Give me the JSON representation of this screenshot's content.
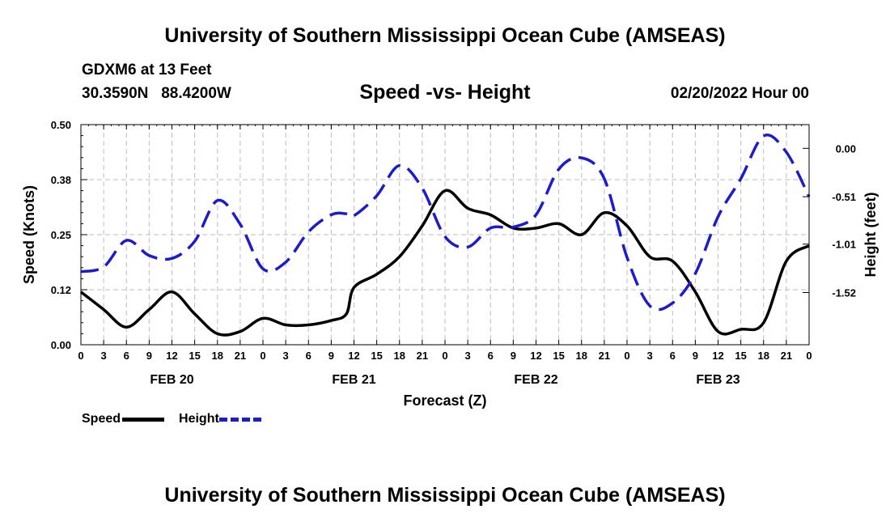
{
  "header": {
    "title": "University of Southern Mississippi Ocean Cube (AMSEAS)",
    "station": "GDXM6 at 13 Feet",
    "coords": "30.3590N   88.4200W",
    "subtitle": "Speed -vs- Height",
    "date": "02/20/2022 Hour 00"
  },
  "footer": {
    "title": "University of Southern Mississippi Ocean Cube (AMSEAS)"
  },
  "legend": {
    "speed_label": "Speed",
    "height_label": "Height"
  },
  "colors": {
    "speed": "#000000",
    "height": "#1c1ccc",
    "grid": "#bdbdbd"
  },
  "chart_data": {
    "type": "line",
    "title": "Speed -vs- Height",
    "xlabel": "Forecast (Z)",
    "ylabel_left": "Speed (Knots)",
    "ylabel_right": "Height (feet)",
    "x_range_hours": [
      0,
      96
    ],
    "x_ticks": [
      "0",
      "3",
      "6",
      "9",
      "12",
      "15",
      "18",
      "21",
      "0",
      "3",
      "6",
      "9",
      "12",
      "15",
      "18",
      "21",
      "0",
      "3",
      "6",
      "9",
      "12",
      "15",
      "18",
      "21",
      "0",
      "3",
      "6",
      "9",
      "12",
      "15",
      "18",
      "21",
      "0"
    ],
    "day_labels": [
      {
        "hour": 12,
        "label": "FEB 20"
      },
      {
        "hour": 36,
        "label": "FEB 21"
      },
      {
        "hour": 60,
        "label": "FEB 22"
      },
      {
        "hour": 84,
        "label": "FEB 23"
      }
    ],
    "ylim_left": [
      0,
      0.5
    ],
    "y_ticks_left": [
      "0.00",
      "0.12",
      "0.25",
      "0.38",
      "0.50"
    ],
    "y_tick_values_left": [
      0,
      0.125,
      0.25,
      0.375,
      0.5
    ],
    "ylim_right": [
      -2.07,
      0.25
    ],
    "y_ticks_right": [
      "0.00",
      "-0.51",
      "-1.01",
      "-1.52"
    ],
    "y_tick_values_right": [
      0,
      -0.51,
      -1.01,
      -1.52
    ],
    "grid": true,
    "series": [
      {
        "name": "Speed",
        "axis": "left",
        "style": "solid",
        "x": [
          0,
          3,
          6,
          9,
          12,
          15,
          18,
          21,
          24,
          27,
          30,
          33,
          35,
          36,
          39,
          42,
          45,
          48,
          51,
          54,
          57,
          60,
          63,
          66,
          69,
          72,
          75,
          78,
          81,
          84,
          87,
          90,
          93,
          96
        ],
        "values": [
          0.12,
          0.08,
          0.04,
          0.08,
          0.12,
          0.07,
          0.025,
          0.03,
          0.06,
          0.045,
          0.045,
          0.055,
          0.07,
          0.13,
          0.16,
          0.2,
          0.27,
          0.35,
          0.31,
          0.295,
          0.265,
          0.265,
          0.275,
          0.25,
          0.3,
          0.27,
          0.2,
          0.19,
          0.12,
          0.03,
          0.035,
          0.05,
          0.19,
          0.225
        ]
      },
      {
        "name": "Height",
        "axis": "right",
        "style": "dashed",
        "x": [
          0,
          3,
          6,
          9,
          12,
          15,
          18,
          21,
          24,
          27,
          30,
          33,
          35,
          36,
          39,
          42,
          45,
          48,
          51,
          54,
          57,
          60,
          63,
          66,
          69,
          72,
          75,
          78,
          81,
          84,
          87,
          90,
          93,
          96
        ],
        "values": [
          -1.3,
          -1.25,
          -0.97,
          -1.13,
          -1.16,
          -0.98,
          -0.55,
          -0.8,
          -1.27,
          -1.2,
          -0.88,
          -0.7,
          -0.69,
          -0.71,
          -0.5,
          -0.18,
          -0.42,
          -0.93,
          -1.04,
          -0.84,
          -0.83,
          -0.7,
          -0.22,
          -0.1,
          -0.32,
          -1.15,
          -1.66,
          -1.63,
          -1.32,
          -0.72,
          -0.32,
          0.13,
          -0.04,
          -0.51
        ]
      }
    ]
  }
}
